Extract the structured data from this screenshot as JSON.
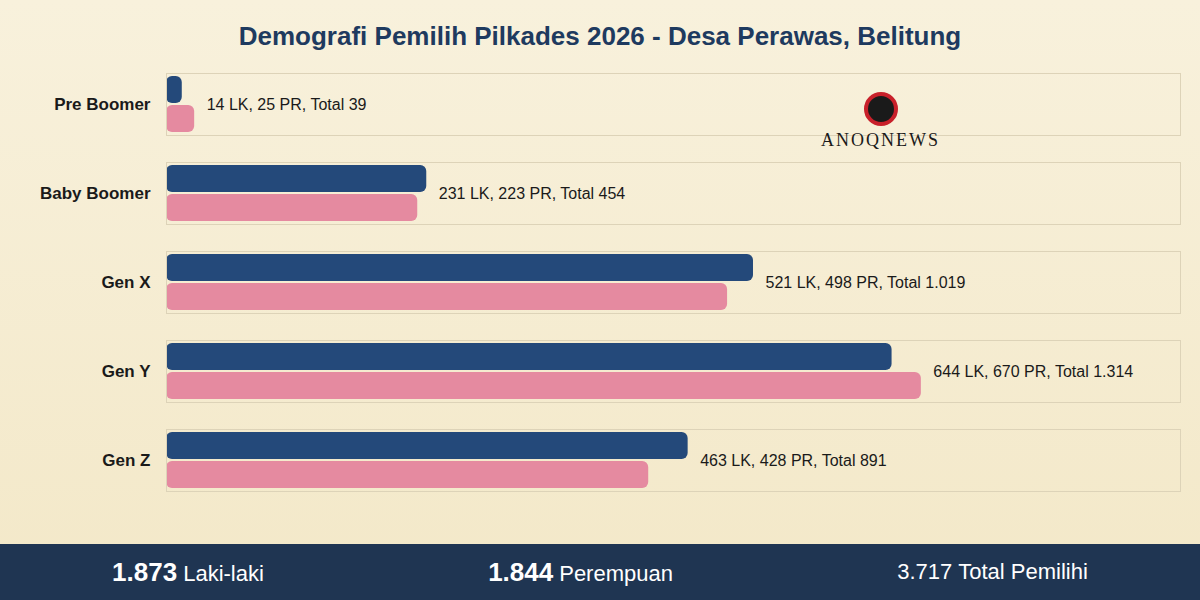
{
  "chart_data": {
    "type": "bar",
    "title": "Demografi Pemilih Pilkades 2026 - Desa Perawas, Belitung",
    "orientation": "horizontal",
    "categories": [
      "Pre Boomer",
      "Baby Boomer",
      "Gen X",
      "Gen Y",
      "Gen Z"
    ],
    "series": [
      {
        "name": "LK",
        "color": "#24497a",
        "values": [
          14,
          231,
          521,
          644,
          463
        ]
      },
      {
        "name": "PR",
        "color": "#e58aa0",
        "values": [
          25,
          223,
          498,
          670,
          428
        ]
      }
    ],
    "xlim": [
      0,
      900
    ],
    "xticks": [],
    "tick_labels": "y",
    "grid": false,
    "annotations": [
      "14 LK, 25 PR, Total 39",
      "231 LK, 223 PR, Total 454",
      "521 LK, 498 PR, Total 1.019",
      "644 LK, 670 PR, Total 1.314",
      "463 LK, 428 PR, Total 891"
    ],
    "logo": "ANOQNEWS",
    "summary": [
      {
        "value": "1.873",
        "label": "Laki-laki"
      },
      {
        "value": "1.844",
        "label": "Perempuan"
      },
      {
        "value": "3.717",
        "label": "Total Pemilihi"
      }
    ]
  }
}
